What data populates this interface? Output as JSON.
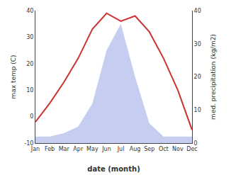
{
  "chart_data": {
    "type": "line",
    "xlabel": "date (month)",
    "ylabel": "max temp (C)",
    "y2label": "med. precipitation (kg/m2)",
    "categories": [
      "Jan",
      "Feb",
      "Mar",
      "Apr",
      "May",
      "Jun",
      "Jul",
      "Aug",
      "Sep",
      "Oct",
      "Nov",
      "Dec"
    ],
    "series": [
      {
        "type": "area",
        "color": "#c5cdf0",
        "axis": "y2",
        "values": [
          2,
          2,
          3,
          5,
          12,
          28,
          36,
          20,
          6,
          2,
          2,
          2
        ]
      },
      {
        "type": "line",
        "color": "#cc3333",
        "values": [
          -2,
          5,
          13,
          22,
          33,
          39,
          36,
          38,
          32,
          22,
          10,
          -5
        ]
      }
    ],
    "ylim": [
      -10,
      40
    ],
    "yticks": [
      -10,
      0,
      10,
      20,
      30,
      40
    ],
    "y2lim": [
      0,
      40
    ],
    "y2ticks": [
      0,
      10,
      20,
      30,
      40
    ],
    "grid": false
  }
}
